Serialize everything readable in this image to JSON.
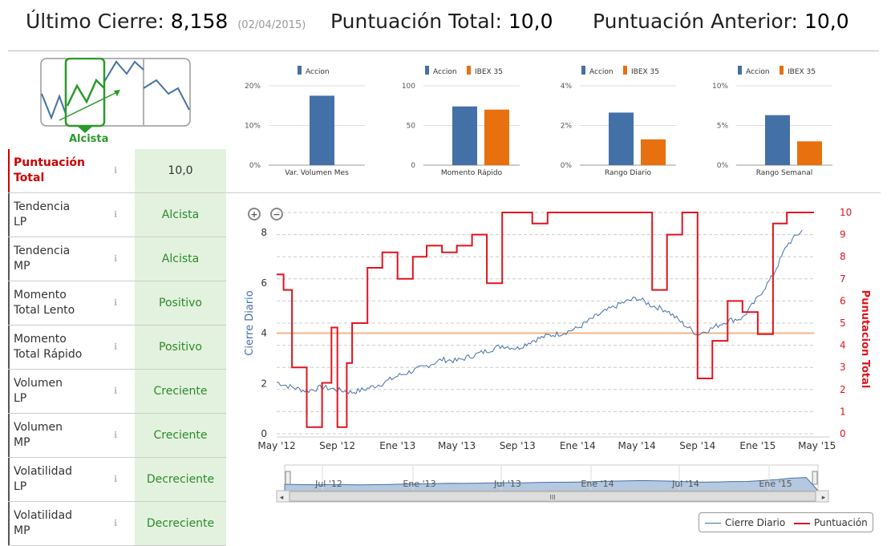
{
  "header": {
    "last_close_label": "Último Cierre:",
    "last_close_value": "8,158",
    "last_close_date": "(02/04/2015)",
    "total_score_label": "Puntuación Total:",
    "total_score_value": "10,0",
    "prev_score_label": "Puntuación Anterior:",
    "prev_score_value": "10,0"
  },
  "trend": {
    "label": "Alcista",
    "color": "#2a9a2a"
  },
  "rows": [
    {
      "label1": "Puntuación",
      "label2": "Total",
      "value": "10,0",
      "highlight": true
    },
    {
      "label1": "Tendencia",
      "label2": "LP",
      "value": "Alcista"
    },
    {
      "label1": "Tendencia",
      "label2": "MP",
      "value": "Alcista"
    },
    {
      "label1": "Momento",
      "label2": "Total Lento",
      "value": "Positivo"
    },
    {
      "label1": "Momento",
      "label2": "Total Rápido",
      "value": "Positivo"
    },
    {
      "label1": "Volumen",
      "label2": "LP",
      "value": "Creciente"
    },
    {
      "label1": "Volumen",
      "label2": "MP",
      "value": "Creciente"
    },
    {
      "label1": "Volatilidad",
      "label2": "LP",
      "value": "Decreciente"
    },
    {
      "label1": "Volatilidad",
      "label2": "MP",
      "value": "Decreciente"
    }
  ],
  "info_icon": "info-icon",
  "colors": {
    "accion": "#4470a8",
    "ibex": "#e8700f",
    "cierre": "#4470a8",
    "puntuacion": "#e0141e",
    "green_bg": "#e3f2de"
  },
  "chart_data": [
    {
      "type": "bar",
      "categories": [
        "Var. Volumen Mes"
      ],
      "series": [
        {
          "name": "Accion",
          "values": [
            17.5
          ]
        }
      ],
      "yticks": [
        "0%",
        "10%",
        "20%"
      ],
      "ylim": [
        0,
        20
      ]
    },
    {
      "type": "bar",
      "categories": [
        "Momento Rápido"
      ],
      "series": [
        {
          "name": "Accion",
          "values": [
            74
          ]
        },
        {
          "name": "IBEX 35",
          "values": [
            70
          ]
        }
      ],
      "yticks": [
        "0",
        "50",
        "100"
      ],
      "ylim": [
        0,
        100
      ]
    },
    {
      "type": "bar",
      "categories": [
        "Rango Diario"
      ],
      "series": [
        {
          "name": "Accion",
          "values": [
            2.65
          ]
        },
        {
          "name": "IBEX 35",
          "values": [
            1.3
          ]
        }
      ],
      "yticks": [
        "0%",
        "2%",
        "4%"
      ],
      "ylim": [
        0,
        4
      ]
    },
    {
      "type": "bar",
      "categories": [
        "Rango Semanal"
      ],
      "series": [
        {
          "name": "Accion",
          "values": [
            6.3
          ]
        },
        {
          "name": "IBEX 35",
          "values": [
            3.0
          ]
        }
      ],
      "yticks": [
        "0%",
        "5%",
        "10%"
      ],
      "ylim": [
        0,
        10
      ]
    },
    {
      "type": "line",
      "x_labels": [
        "May '12",
        "Sep '12",
        "Ene '13",
        "May '13",
        "Sep '13",
        "Ene '14",
        "May '14",
        "Sep '14",
        "Ene '15",
        "May '15"
      ],
      "x_dates": [
        "2012-05",
        "2012-09",
        "2013-01",
        "2013-05",
        "2013-09",
        "2014-01",
        "2014-05",
        "2014-09",
        "2015-01",
        "2015-05"
      ],
      "left_axis": {
        "label": "Cierre Diario",
        "ticks": [
          "0",
          "2",
          "4",
          "6",
          "8"
        ],
        "range": [
          0,
          8.8
        ]
      },
      "right_axis": {
        "label": "Punutacion Total",
        "ticks": [
          "0",
          "1",
          "2",
          "3",
          "4",
          "5",
          "6",
          "7",
          "8",
          "9",
          "10"
        ],
        "range": [
          0,
          10
        ]
      },
      "reference_line": 4.0,
      "series": [
        {
          "name": "Cierre Diario",
          "axis": "left",
          "x": [
            "2012-05",
            "2012-06",
            "2012-07",
            "2012-08",
            "2012-09",
            "2012-10",
            "2012-11",
            "2012-12",
            "2013-01",
            "2013-02",
            "2013-03",
            "2013-04",
            "2013-05",
            "2013-06",
            "2013-07",
            "2013-08",
            "2013-09",
            "2013-10",
            "2013-11",
            "2013-12",
            "2014-01",
            "2014-02",
            "2014-03",
            "2014-04",
            "2014-05",
            "2014-06",
            "2014-07",
            "2014-08",
            "2014-09",
            "2014-10",
            "2014-11",
            "2014-12",
            "2015-01",
            "2015-02",
            "2015-03",
            "2015-04"
          ],
          "values": [
            2.05,
            1.85,
            1.7,
            1.85,
            1.75,
            1.65,
            1.8,
            2.0,
            2.3,
            2.5,
            2.7,
            2.95,
            2.9,
            3.1,
            3.3,
            3.5,
            3.4,
            3.7,
            3.9,
            4.0,
            4.2,
            4.6,
            4.9,
            5.2,
            5.4,
            5.1,
            4.9,
            4.4,
            3.95,
            4.2,
            4.5,
            4.6,
            5.4,
            6.3,
            7.5,
            8.1
          ]
        },
        {
          "name": "Puntuación",
          "axis": "right",
          "x": [
            "2012-05",
            "2012-05-15",
            "2012-06",
            "2012-07",
            "2012-08",
            "2012-08-20",
            "2012-09",
            "2012-09-20",
            "2012-10",
            "2012-11",
            "2012-12",
            "2013-01",
            "2013-02",
            "2013-03",
            "2013-04",
            "2013-05",
            "2013-06",
            "2013-07",
            "2013-08",
            "2013-09",
            "2013-10",
            "2013-11",
            "2013-12",
            "2014-01",
            "2014-02",
            "2014-03",
            "2014-04",
            "2014-05",
            "2014-06",
            "2014-07",
            "2014-08",
            "2014-09",
            "2014-10",
            "2014-11",
            "2014-12",
            "2015-01",
            "2015-02",
            "2015-03",
            "2015-04"
          ],
          "values": [
            7.2,
            6.5,
            3,
            0.3,
            2.3,
            4.8,
            0.3,
            3.2,
            5.0,
            7.5,
            8.2,
            7.0,
            8.0,
            8.5,
            8.2,
            8.5,
            9.0,
            6.8,
            10.0,
            10.0,
            9.5,
            10.0,
            10.0,
            10.0,
            10.0,
            10.0,
            10.0,
            10.0,
            6.5,
            9.0,
            10.0,
            2.5,
            4.2,
            6.0,
            5.5,
            4.5,
            9.5,
            10.0,
            10.0
          ]
        }
      ],
      "navigator": {
        "labels": [
          "Jul '12",
          "Ene '13",
          "Jul '13",
          "Ene '14",
          "Jul '14",
          "Ene '15"
        ],
        "scroll_mark": "III"
      },
      "legend": [
        "Cierre Diario",
        "Puntuación"
      ],
      "legend_placement": "bottom-right"
    }
  ]
}
